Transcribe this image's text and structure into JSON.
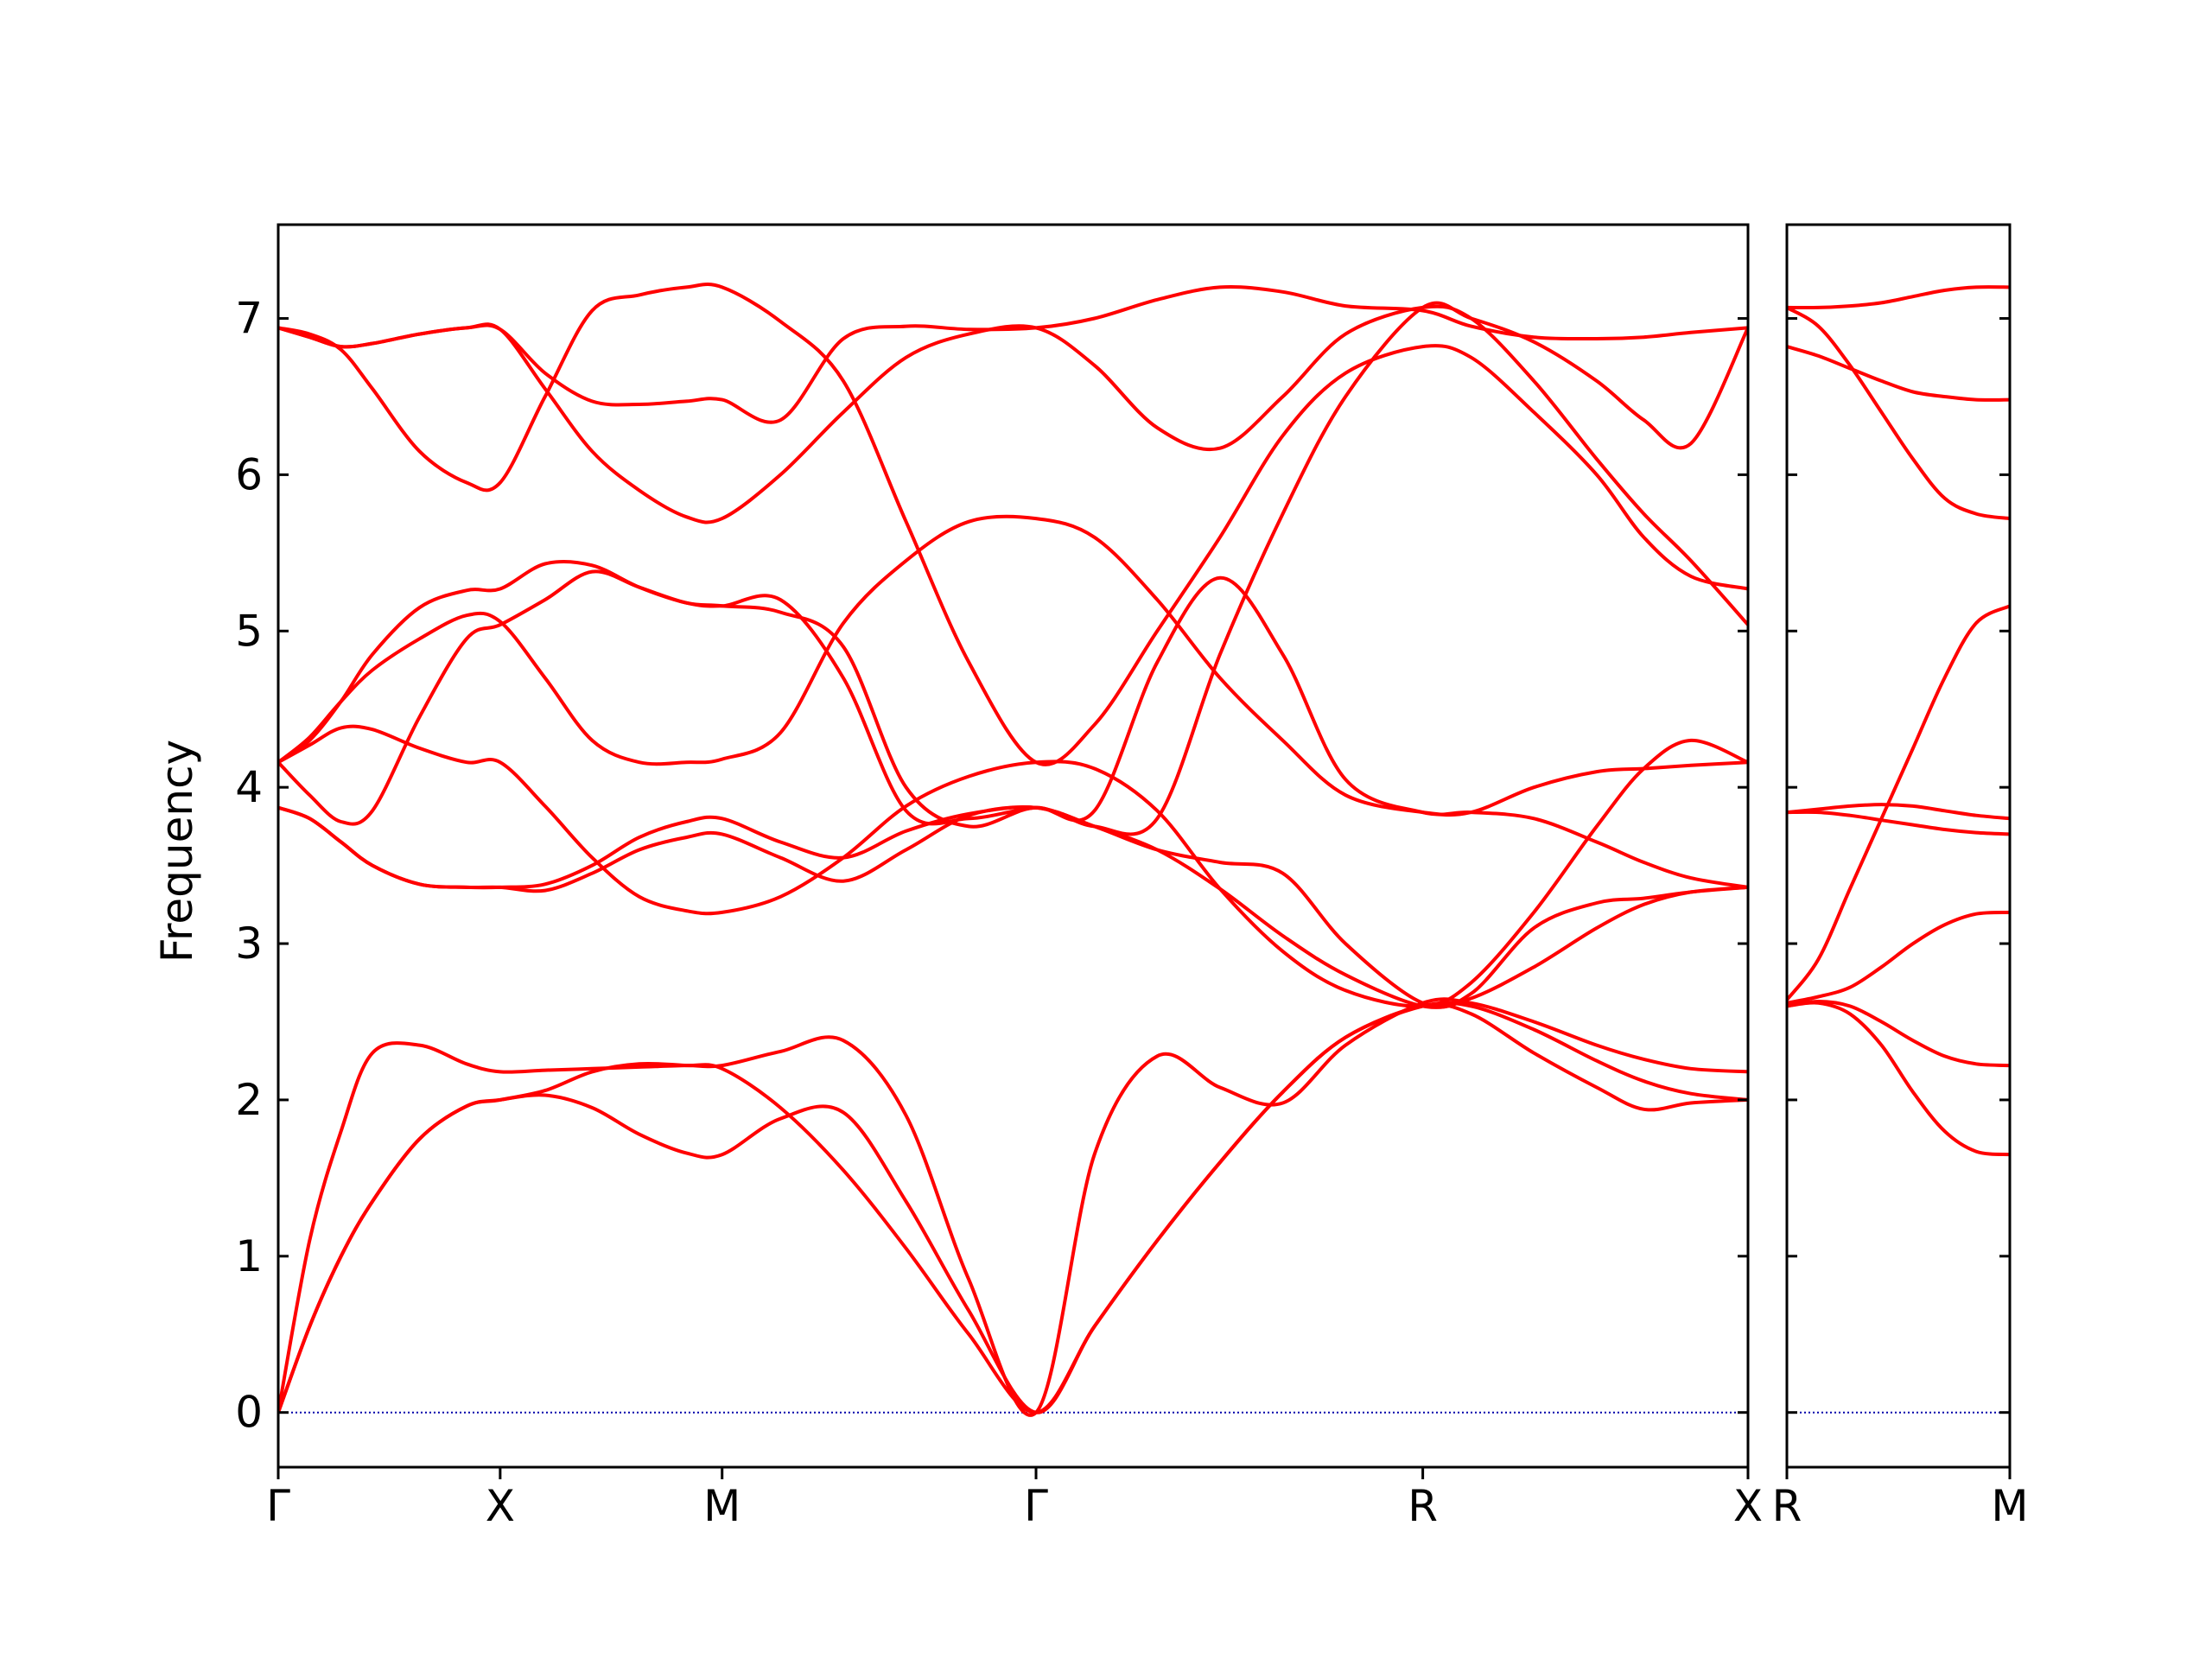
{
  "figure": {
    "ylabel": "Frequency",
    "band_color": "#ff0000",
    "zero_line_color": "#0000aa",
    "axis_color": "#000000"
  },
  "chart_data": [
    {
      "type": "line",
      "panel": "left",
      "ylabel": "Frequency",
      "ylim": [
        -0.35,
        7.6
      ],
      "yticks": [
        0,
        1,
        2,
        3,
        4,
        5,
        6,
        7
      ],
      "xlim": [
        0,
        4.682
      ],
      "xticks": [
        {
          "pos": 0,
          "label": "Γ"
        },
        {
          "pos": 0.707,
          "label": "X"
        },
        {
          "pos": 1.414,
          "label": "M"
        },
        {
          "pos": 2.414,
          "label": "Γ"
        },
        {
          "pos": 3.646,
          "label": "R"
        },
        {
          "pos": 4.682,
          "label": "X"
        }
      ],
      "grid": false,
      "zero_line": true,
      "series": [
        {
          "x": [
            0,
            0.1,
            0.2,
            0.3,
            0.45,
            0.6,
            0.707,
            0.85,
            1.0,
            1.15,
            1.3,
            1.414,
            1.6,
            1.8,
            2.0,
            2.2,
            2.414,
            2.6,
            2.8,
            3.0,
            3.2,
            3.4,
            3.646,
            3.8,
            4.0,
            4.2,
            4.35,
            4.5,
            4.682
          ],
          "y": [
            0,
            0.55,
            1.0,
            1.35,
            1.75,
            1.96,
            2.0,
            2.06,
            2.18,
            2.23,
            2.22,
            2.2,
            1.95,
            1.55,
            1.05,
            0.5,
            0,
            0.55,
            1.1,
            1.6,
            2.05,
            2.4,
            2.6,
            2.55,
            2.3,
            2.08,
            1.94,
            1.98,
            2.0
          ]
        },
        {
          "x": [
            0,
            0.1,
            0.2,
            0.3,
            0.45,
            0.6,
            0.707,
            0.85,
            1.0,
            1.15,
            1.3,
            1.414,
            1.6,
            1.8,
            2.0,
            2.2,
            2.414,
            2.6,
            2.8,
            3.0,
            3.2,
            3.4,
            3.646,
            3.8,
            4.0,
            4.2,
            4.35,
            4.5,
            4.682
          ],
          "y": [
            0,
            0.55,
            1.0,
            1.35,
            1.75,
            1.96,
            2.0,
            2.03,
            1.95,
            1.78,
            1.66,
            1.65,
            1.88,
            1.92,
            1.35,
            0.65,
            0,
            0.55,
            1.1,
            1.6,
            2.05,
            2.4,
            2.6,
            2.6,
            2.45,
            2.25,
            2.12,
            2.04,
            2.0
          ]
        },
        {
          "x": [
            0,
            0.1,
            0.2,
            0.3,
            0.45,
            0.6,
            0.707,
            0.85,
            1.0,
            1.15,
            1.3,
            1.414,
            1.6,
            1.8,
            2.0,
            2.2,
            2.414,
            2.6,
            2.8,
            3.0,
            3.2,
            3.4,
            3.646,
            3.8,
            4.0,
            4.2,
            4.35,
            4.5,
            4.682
          ],
          "y": [
            0,
            1.1,
            1.8,
            2.3,
            2.35,
            2.23,
            2.18,
            2.19,
            2.2,
            2.21,
            2.22,
            2.22,
            2.31,
            2.38,
            1.9,
            0.85,
            0,
            1.65,
            2.28,
            2.08,
            1.98,
            2.35,
            2.62,
            2.62,
            2.5,
            2.35,
            2.26,
            2.2,
            2.18
          ]
        },
        {
          "x": [
            0,
            0.1,
            0.2,
            0.3,
            0.45,
            0.6,
            0.707,
            0.85,
            1.0,
            1.15,
            1.3,
            1.414,
            1.6,
            1.8,
            2.0,
            2.2,
            2.414,
            2.6,
            2.8,
            3.0,
            3.2,
            3.4,
            3.646,
            3.8,
            4.0,
            4.2,
            4.35,
            4.5,
            4.682
          ],
          "y": [
            3.87,
            3.8,
            3.65,
            3.5,
            3.38,
            3.36,
            3.36,
            3.34,
            3.45,
            3.6,
            3.68,
            3.7,
            3.55,
            3.4,
            3.6,
            3.82,
            3.87,
            3.75,
            3.6,
            3.35,
            3.05,
            2.8,
            2.6,
            2.65,
            2.85,
            3.1,
            3.25,
            3.33,
            3.36
          ]
        },
        {
          "x": [
            0,
            0.1,
            0.2,
            0.3,
            0.45,
            0.6,
            0.707,
            0.85,
            1.0,
            1.15,
            1.3,
            1.414,
            1.6,
            1.8,
            2.0,
            2.2,
            2.414,
            2.6,
            2.8,
            3.0,
            3.2,
            3.4,
            3.646,
            3.8,
            4.0,
            4.2,
            4.35,
            4.5,
            4.682
          ],
          "y": [
            3.87,
            3.8,
            3.65,
            3.5,
            3.38,
            3.36,
            3.36,
            3.38,
            3.5,
            3.68,
            3.78,
            3.8,
            3.65,
            3.55,
            3.72,
            3.83,
            3.87,
            3.75,
            3.6,
            3.52,
            3.45,
            3.0,
            2.62,
            2.68,
            3.1,
            3.26,
            3.29,
            3.33,
            3.36
          ]
        },
        {
          "x": [
            0,
            0.1,
            0.2,
            0.3,
            0.45,
            0.6,
            0.707,
            0.85,
            1.0,
            1.15,
            1.3,
            1.414,
            1.6,
            1.8,
            2.0,
            2.2,
            2.414,
            2.6,
            2.8,
            3.0,
            3.2,
            3.4,
            3.646,
            3.8,
            4.0,
            4.2,
            4.35,
            4.5,
            4.682
          ],
          "y": [
            4.16,
            4.27,
            4.38,
            4.37,
            4.25,
            4.16,
            4.16,
            3.88,
            3.55,
            3.3,
            3.21,
            3.2,
            3.3,
            3.55,
            3.88,
            4.07,
            4.16,
            4.12,
            3.85,
            3.35,
            2.95,
            2.7,
            2.6,
            2.75,
            3.2,
            3.75,
            4.12,
            4.3,
            4.16
          ]
        },
        {
          "x": [
            0,
            0.1,
            0.2,
            0.3,
            0.45,
            0.6,
            0.707,
            0.85,
            1.0,
            1.15,
            1.3,
            1.414,
            1.6,
            1.8,
            2.0,
            2.2,
            2.414,
            2.6,
            2.8,
            3.0,
            3.2,
            3.4,
            3.646,
            3.8,
            4.0,
            4.2,
            4.35,
            4.5,
            4.682
          ],
          "y": [
            4.16,
            3.95,
            3.78,
            3.85,
            4.45,
            4.95,
            5.04,
            5.2,
            5.38,
            5.28,
            5.18,
            5.16,
            5.12,
            4.9,
            4.0,
            3.75,
            3.87,
            3.75,
            3.8,
            4.85,
            5.75,
            6.5,
            7.07,
            7.0,
            6.85,
            6.6,
            6.35,
            6.2,
            6.94
          ]
        },
        {
          "x": [
            0,
            0.1,
            0.2,
            0.3,
            0.45,
            0.6,
            0.707,
            0.85,
            1.0,
            1.15,
            1.3,
            1.414,
            1.6,
            1.8,
            2.0,
            2.2,
            2.414,
            2.6,
            2.8,
            3.0,
            3.2,
            3.4,
            3.646,
            3.8,
            4.0,
            4.2,
            4.35,
            4.5,
            4.682
          ],
          "y": [
            4.16,
            4.3,
            4.55,
            4.85,
            5.15,
            5.26,
            5.27,
            5.43,
            5.42,
            5.28,
            5.18,
            5.16,
            5.2,
            4.7,
            3.85,
            3.8,
            3.87,
            3.85,
            4.8,
            5.34,
            4.85,
            4.05,
            3.84,
            3.84,
            3.8,
            3.65,
            3.52,
            3.42,
            3.36
          ]
        },
        {
          "x": [
            0,
            0.1,
            0.2,
            0.3,
            0.45,
            0.6,
            0.707,
            0.85,
            1.0,
            1.15,
            1.3,
            1.414,
            1.6,
            1.8,
            2.0,
            2.2,
            2.414,
            2.6,
            2.8,
            3.0,
            3.2,
            3.4,
            3.646,
            3.8,
            4.0,
            4.2,
            4.35,
            4.5,
            4.682
          ],
          "y": [
            4.16,
            4.32,
            4.55,
            4.75,
            4.95,
            5.1,
            5.06,
            4.7,
            4.3,
            4.16,
            4.16,
            4.18,
            4.35,
            5.05,
            5.45,
            5.7,
            5.72,
            5.6,
            5.2,
            4.7,
            4.3,
            3.95,
            3.84,
            3.84,
            4.0,
            4.1,
            4.12,
            4.14,
            4.16
          ]
        },
        {
          "x": [
            0,
            0.1,
            0.2,
            0.3,
            0.45,
            0.6,
            0.707,
            0.85,
            1.0,
            1.15,
            1.3,
            1.414,
            1.6,
            1.8,
            2.0,
            2.2,
            2.414,
            2.6,
            2.8,
            3.0,
            3.2,
            3.4,
            3.646,
            3.8,
            4.0,
            4.2,
            4.35,
            4.5,
            4.682
          ],
          "y": [
            6.94,
            6.9,
            6.8,
            6.55,
            6.15,
            5.95,
            5.95,
            6.5,
            7.05,
            7.15,
            7.2,
            7.2,
            6.98,
            6.6,
            5.7,
            4.8,
            4.16,
            4.4,
            5.0,
            5.6,
            6.25,
            6.65,
            6.82,
            6.75,
            6.4,
            6.0,
            5.6,
            5.35,
            5.27
          ]
        },
        {
          "x": [
            0,
            0.1,
            0.2,
            0.3,
            0.45,
            0.6,
            0.707,
            0.85,
            1.0,
            1.15,
            1.3,
            1.414,
            1.6,
            1.8,
            2.0,
            2.2,
            2.414,
            2.6,
            2.8,
            3.0,
            3.2,
            3.4,
            3.646,
            3.8,
            4.0,
            4.2,
            4.35,
            4.5,
            4.682
          ],
          "y": [
            6.94,
            6.88,
            6.82,
            6.84,
            6.9,
            6.94,
            6.93,
            6.55,
            6.15,
            5.9,
            5.73,
            5.72,
            6.0,
            6.4,
            6.75,
            6.9,
            6.94,
            6.7,
            6.3,
            6.17,
            6.5,
            6.9,
            7.07,
            7.0,
            6.6,
            6.1,
            5.75,
            5.45,
            5.04
          ]
        },
        {
          "x": [
            0,
            0.1,
            0.2,
            0.3,
            0.45,
            0.6,
            0.707,
            0.85,
            1.0,
            1.15,
            1.3,
            1.414,
            1.6,
            1.8,
            2.0,
            2.2,
            2.414,
            2.6,
            2.8,
            3.0,
            3.2,
            3.4,
            3.646,
            3.8,
            4.0,
            4.2,
            4.35,
            4.5,
            4.682
          ],
          "y": [
            6.94,
            6.88,
            6.82,
            6.84,
            6.9,
            6.94,
            6.93,
            6.65,
            6.47,
            6.45,
            6.47,
            6.48,
            6.35,
            6.87,
            6.95,
            6.93,
            6.94,
            7.0,
            7.12,
            7.2,
            7.17,
            7.08,
            7.05,
            6.95,
            6.88,
            6.87,
            6.88,
            6.91,
            6.94
          ]
        }
      ]
    },
    {
      "type": "line",
      "panel": "right",
      "ylim": [
        -0.35,
        7.6
      ],
      "yticks": [
        0,
        1,
        2,
        3,
        4,
        5,
        6,
        7
      ],
      "xlim": [
        0,
        0.707
      ],
      "xticks": [
        {
          "pos": 0,
          "label": "R"
        },
        {
          "pos": 0.707,
          "label": "M"
        }
      ],
      "grid": false,
      "zero_line": true,
      "series": [
        {
          "x": [
            0,
            0.1,
            0.2,
            0.3,
            0.4,
            0.5,
            0.6,
            0.707
          ],
          "y": [
            2.6,
            2.62,
            2.55,
            2.35,
            2.05,
            1.8,
            1.67,
            1.65
          ]
        },
        {
          "x": [
            0,
            0.1,
            0.2,
            0.3,
            0.4,
            0.5,
            0.6,
            0.707
          ],
          "y": [
            2.6,
            2.63,
            2.6,
            2.5,
            2.38,
            2.28,
            2.23,
            2.22
          ]
        },
        {
          "x": [
            0,
            0.1,
            0.2,
            0.3,
            0.4,
            0.5,
            0.6,
            0.707
          ],
          "y": [
            2.62,
            2.66,
            2.72,
            2.85,
            3.0,
            3.12,
            3.19,
            3.2
          ]
        },
        {
          "x": [
            0,
            0.1,
            0.2,
            0.3,
            0.4,
            0.5,
            0.6,
            0.707
          ],
          "y": [
            2.64,
            2.9,
            3.35,
            3.8,
            4.25,
            4.7,
            5.05,
            5.16
          ]
        },
        {
          "x": [
            0,
            0.1,
            0.2,
            0.3,
            0.4,
            0.5,
            0.6,
            0.707
          ],
          "y": [
            3.84,
            3.84,
            3.82,
            3.79,
            3.76,
            3.73,
            3.71,
            3.7
          ]
        },
        {
          "x": [
            0,
            0.1,
            0.2,
            0.3,
            0.4,
            0.5,
            0.6,
            0.707
          ],
          "y": [
            3.84,
            3.86,
            3.88,
            3.89,
            3.88,
            3.85,
            3.82,
            3.8
          ]
        },
        {
          "x": [
            0,
            0.1,
            0.2,
            0.3,
            0.4,
            0.5,
            0.6,
            0.707
          ],
          "y": [
            6.82,
            6.76,
            6.68,
            6.6,
            6.53,
            6.5,
            6.48,
            6.48
          ]
        },
        {
          "x": [
            0,
            0.1,
            0.2,
            0.3,
            0.4,
            0.5,
            0.6,
            0.707
          ],
          "y": [
            7.07,
            6.95,
            6.7,
            6.4,
            6.1,
            5.85,
            5.75,
            5.72
          ]
        },
        {
          "x": [
            0,
            0.1,
            0.2,
            0.3,
            0.4,
            0.5,
            0.6,
            0.707
          ],
          "y": [
            7.07,
            7.07,
            7.08,
            7.1,
            7.14,
            7.18,
            7.2,
            7.2
          ]
        }
      ]
    }
  ]
}
